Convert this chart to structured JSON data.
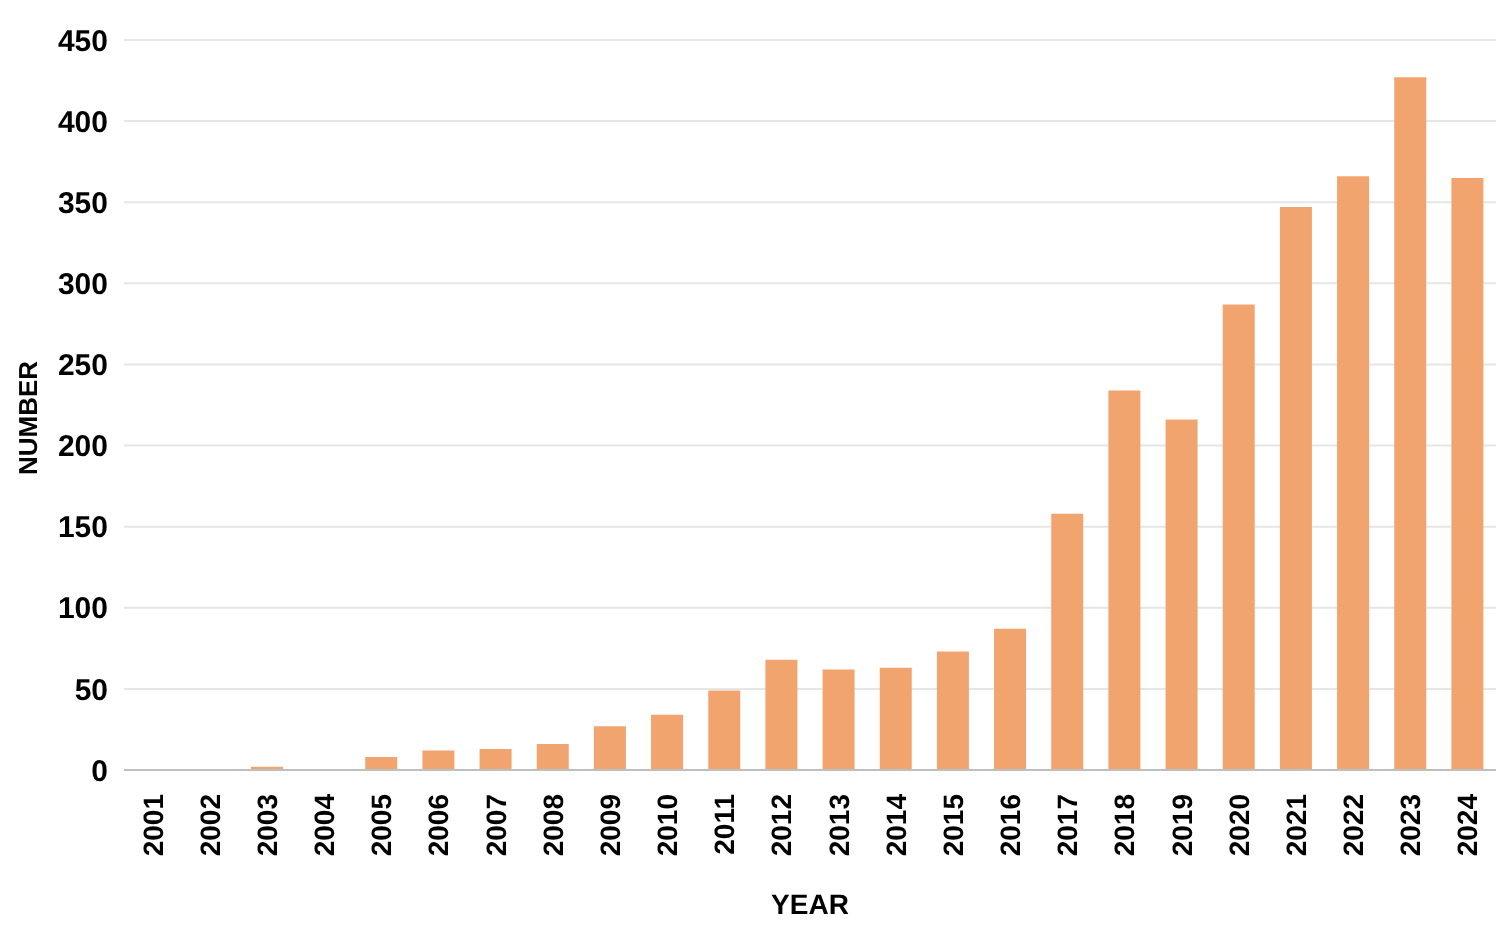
{
  "chart_data": {
    "type": "bar",
    "xlabel": "YEAR",
    "ylabel": "NUMBER",
    "categories": [
      "2001",
      "2002",
      "2003",
      "2004",
      "2005",
      "2006",
      "2007",
      "2008",
      "2009",
      "2010",
      "2011",
      "2012",
      "2013",
      "2014",
      "2015",
      "2016",
      "2017",
      "2018",
      "2019",
      "2020",
      "2021",
      "2022",
      "2023",
      "2024"
    ],
    "values": [
      0,
      0,
      2,
      0,
      8,
      12,
      13,
      16,
      27,
      34,
      49,
      68,
      62,
      63,
      73,
      87,
      158,
      234,
      216,
      287,
      347,
      366,
      427,
      365
    ],
    "color": "#f2a46f",
    "ylim": [
      0,
      450
    ],
    "yticks": [
      0,
      50,
      100,
      150,
      200,
      250,
      300,
      350,
      400,
      450
    ],
    "grid": "y"
  }
}
